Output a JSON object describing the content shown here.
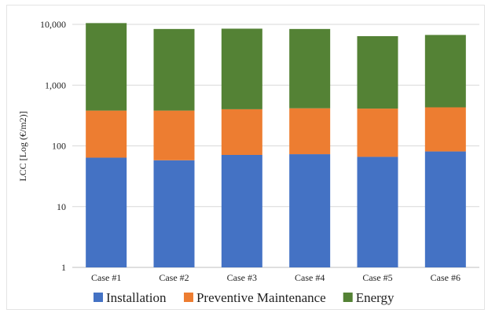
{
  "chart_data": {
    "type": "bar",
    "stacked": true,
    "scale": "log",
    "title": "",
    "xlabel": "",
    "ylabel": "LCC [Log (€/m2)]",
    "ylim": [
      1,
      10000
    ],
    "yticks": [
      1,
      10,
      100,
      1000,
      10000
    ],
    "ytick_labels": [
      "1",
      "10",
      "100",
      "1,000",
      "10,000"
    ],
    "categories": [
      "Case #1",
      "Case #2",
      "Case #3",
      "Case #4",
      "Case #5",
      "Case #6"
    ],
    "series": [
      {
        "name": "Installation",
        "color": "#4472C4",
        "values": [
          63,
          57,
          70,
          72,
          65,
          80
        ]
      },
      {
        "name": "Preventive Maintenance",
        "color": "#ED7D31",
        "values": [
          317,
          323,
          330,
          343,
          345,
          350
        ]
      },
      {
        "name": "Energy",
        "color": "#548235",
        "values": [
          10120,
          8020,
          8100,
          7985,
          5990,
          6270
        ]
      }
    ],
    "grid": true,
    "legend_position": "bottom"
  }
}
